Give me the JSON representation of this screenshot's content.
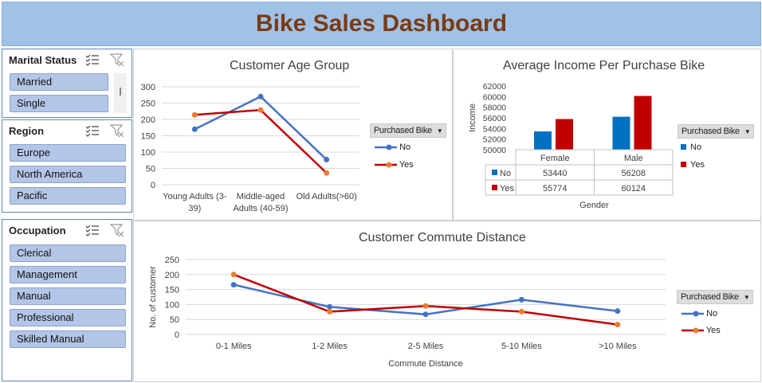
{
  "title": "Bike Sales Dashboard",
  "slicers": [
    {
      "header": "Marital Status",
      "items": [
        "Married",
        "Single"
      ]
    },
    {
      "header": "Region",
      "items": [
        "Europe",
        "North America",
        "Pacific"
      ]
    },
    {
      "header": "Occupation",
      "items": [
        "Clerical",
        "Management",
        "Manual",
        "Professional",
        "Skilled Manual"
      ]
    }
  ],
  "legend": {
    "header": "Purchased Bike",
    "no": "No",
    "yes": "Yes"
  },
  "colors": {
    "no": "#4472c4",
    "yes": "#c00000",
    "no_bar": "#0070c0",
    "yes_bar": "#c00000",
    "title": "#7a3a14",
    "title_bg": "#9fc2e6"
  },
  "chart_data": [
    {
      "type": "line",
      "title": "Customer Age Group",
      "categories": [
        "Young Adults (3-39)",
        "Middle-aged Adults (40-59)",
        "Old Adults(>60)"
      ],
      "series": [
        {
          "name": "No",
          "values": [
            170,
            270,
            77
          ]
        },
        {
          "name": "Yes",
          "values": [
            214,
            229,
            36
          ]
        }
      ],
      "ylim": [
        0,
        300
      ],
      "yticks": [
        0,
        50,
        100,
        150,
        200,
        250,
        300
      ],
      "grid": true,
      "legend": "right"
    },
    {
      "type": "bar",
      "title": "Average Income Per Purchase Bike",
      "categories": [
        "Female",
        "Male"
      ],
      "series": [
        {
          "name": "No",
          "values": [
            53440,
            56208
          ]
        },
        {
          "name": "Yes",
          "values": [
            55774,
            60124
          ]
        }
      ],
      "xlabel": "Gender",
      "ylabel": "Income",
      "ylim": [
        50000,
        62000
      ],
      "yticks": [
        50000,
        52000,
        54000,
        56000,
        58000,
        60000,
        62000
      ],
      "data_table": true,
      "legend": "right"
    },
    {
      "type": "line",
      "title": "Customer Commute Distance",
      "categories": [
        "0-1 Miles",
        "1-2 Miles",
        "2-5 Miles",
        "5-10 Miles",
        ">10 Miles"
      ],
      "series": [
        {
          "name": "No",
          "values": [
            166,
            92,
            67,
            116,
            78
          ]
        },
        {
          "name": "Yes",
          "values": [
            200,
            76,
            95,
            76,
            33
          ]
        }
      ],
      "xlabel": "Commute Distance",
      "ylabel": "No. of customer",
      "ylim": [
        0,
        250
      ],
      "yticks": [
        0,
        50,
        100,
        150,
        200,
        250
      ],
      "grid": true,
      "legend": "right"
    }
  ]
}
